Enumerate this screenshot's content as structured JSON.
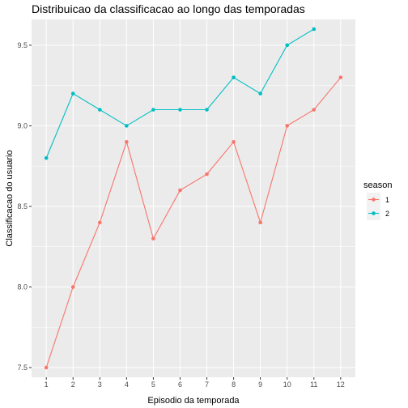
{
  "chart_data": {
    "type": "line",
    "title": "Distribuicao da classificacao ao longo das temporadas",
    "xlabel": "Episodio da temporada",
    "ylabel": "Classificacao do usuario",
    "x": [
      1,
      2,
      3,
      4,
      5,
      6,
      7,
      8,
      9,
      10,
      11,
      12
    ],
    "x_ticks": [
      "1",
      "2",
      "3",
      "4",
      "5",
      "6",
      "7",
      "8",
      "9",
      "10",
      "11",
      "12"
    ],
    "y_ticks": [
      "7.5",
      "8.0",
      "8.5",
      "9.0",
      "9.5"
    ],
    "xlim": [
      0.45,
      12.55
    ],
    "ylim": [
      7.44,
      9.66
    ],
    "grid": true,
    "legend": {
      "title": "season",
      "placement": "right",
      "entries": [
        "1",
        "2"
      ]
    },
    "series": [
      {
        "name": "1",
        "color": "#F8766D",
        "x": [
          1,
          2,
          3,
          4,
          5,
          6,
          7,
          8,
          9,
          10,
          11,
          12
        ],
        "values": [
          7.5,
          8.0,
          8.4,
          8.9,
          8.3,
          8.6,
          8.7,
          8.9,
          8.4,
          9.0,
          9.1,
          9.3
        ]
      },
      {
        "name": "2",
        "color": "#00BFC4",
        "x": [
          1,
          2,
          3,
          4,
          5,
          6,
          7,
          8,
          9,
          10,
          11
        ],
        "values": [
          8.8,
          9.2,
          9.1,
          9.0,
          9.1,
          9.1,
          9.1,
          9.3,
          9.2,
          9.5,
          9.6
        ]
      }
    ]
  }
}
